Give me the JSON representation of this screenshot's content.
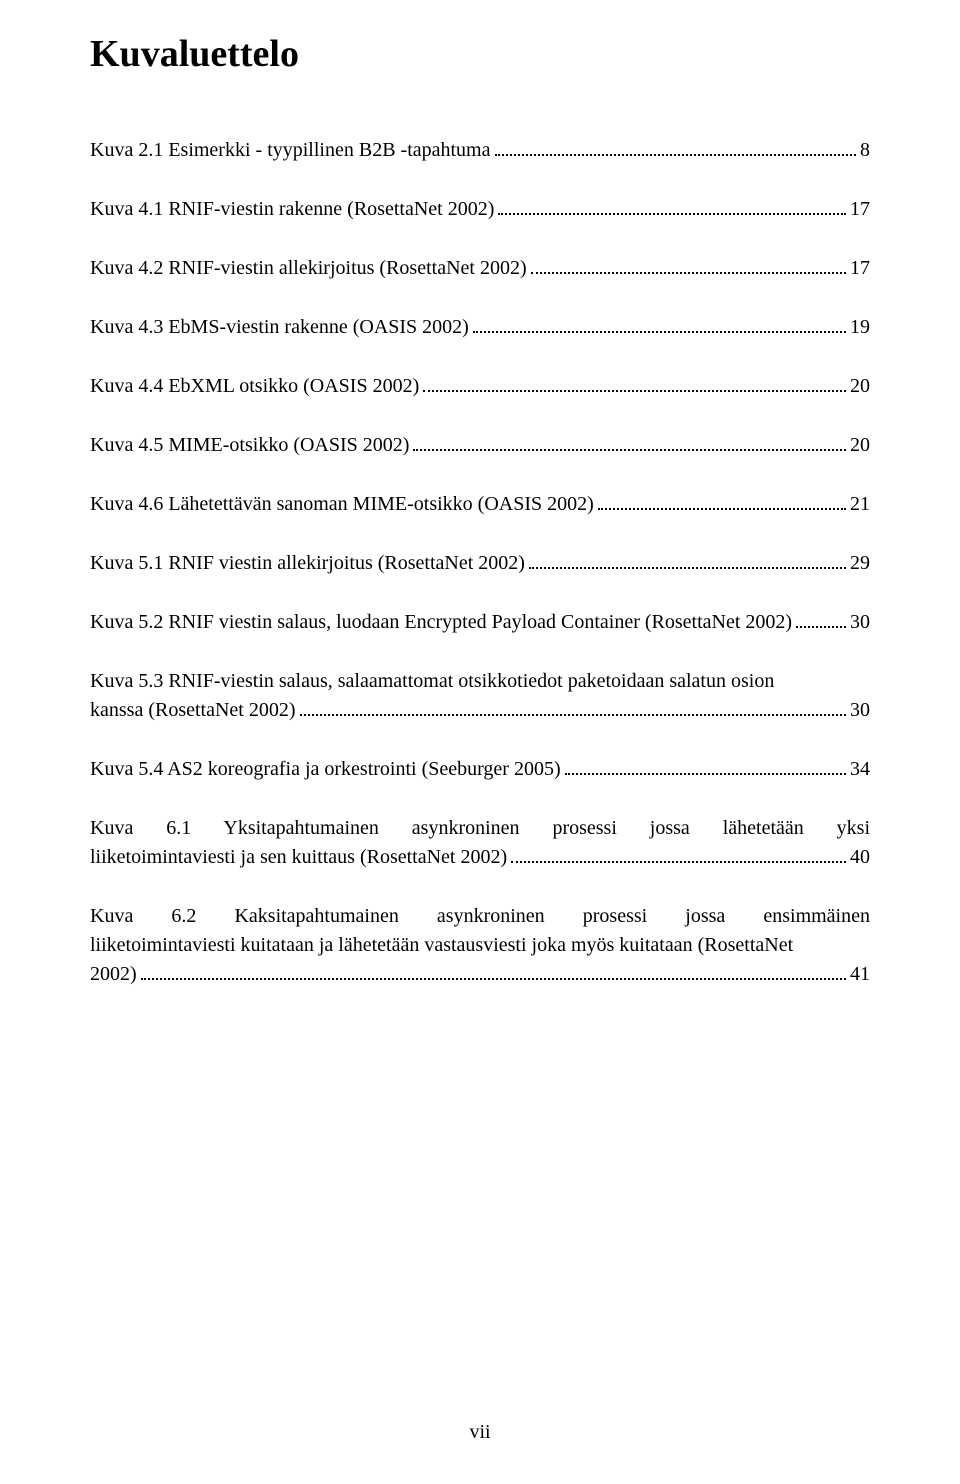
{
  "title": "Kuvaluettelo",
  "page_number": "vii",
  "font": {
    "family": "Times New Roman",
    "title_size_pt": 28,
    "body_size_pt": 15
  },
  "colors": {
    "text": "#000000",
    "background": "#ffffff"
  },
  "entries": [
    {
      "text": "Kuva 2.1 Esimerkki - tyypillinen B2B -tapahtuma",
      "page": "8"
    },
    {
      "text": "Kuva 4.1 RNIF-viestin rakenne (RosettaNet 2002)",
      "page": "17"
    },
    {
      "text": "Kuva 4.2 RNIF-viestin allekirjoitus (RosettaNet 2002)",
      "page": "17"
    },
    {
      "text": "Kuva 4.3 EbMS-viestin rakenne (OASIS 2002)",
      "page": "19"
    },
    {
      "text": "Kuva 4.4 EbXML otsikko (OASIS 2002)",
      "page": "20"
    },
    {
      "text": "Kuva 4.5 MIME-otsikko (OASIS 2002)",
      "page": "20"
    },
    {
      "text": "Kuva 4.6 Lähetettävän sanoman MIME-otsikko (OASIS 2002)",
      "page": "21"
    },
    {
      "text": "Kuva 5.1 RNIF viestin allekirjoitus (RosettaNet 2002)",
      "page": "29"
    },
    {
      "text": "Kuva 5.2 RNIF viestin salaus, luodaan Encrypted Payload Container (RosettaNet 2002)",
      "page": "30"
    },
    {
      "text_line1": "Kuva 5.3 RNIF-viestin salaus, salaamattomat otsikkotiedot paketoidaan salatun osion",
      "text_line2": "kanssa (RosettaNet 2002)",
      "page": "30"
    },
    {
      "text": "Kuva 5.4 AS2 koreografia ja orkestrointi (Seeburger 2005)",
      "page": "34"
    },
    {
      "text_line1": "Kuva 6.1 Yksitapahtumainen asynkroninen prosessi jossa lähetetään yksi",
      "text_line2": "liiketoimintaviesti ja sen kuittaus (RosettaNet 2002)",
      "page": "40",
      "justify_first": true
    },
    {
      "text_line1": "Kuva 6.2 Kaksitapahtumainen asynkroninen prosessi jossa ensimmäinen",
      "text_line2": "liiketoimintaviesti kuitataan ja lähetetään vastausviesti joka myös kuitataan (RosettaNet",
      "text_line3": "2002)",
      "page": "41",
      "justify_first": true
    }
  ]
}
